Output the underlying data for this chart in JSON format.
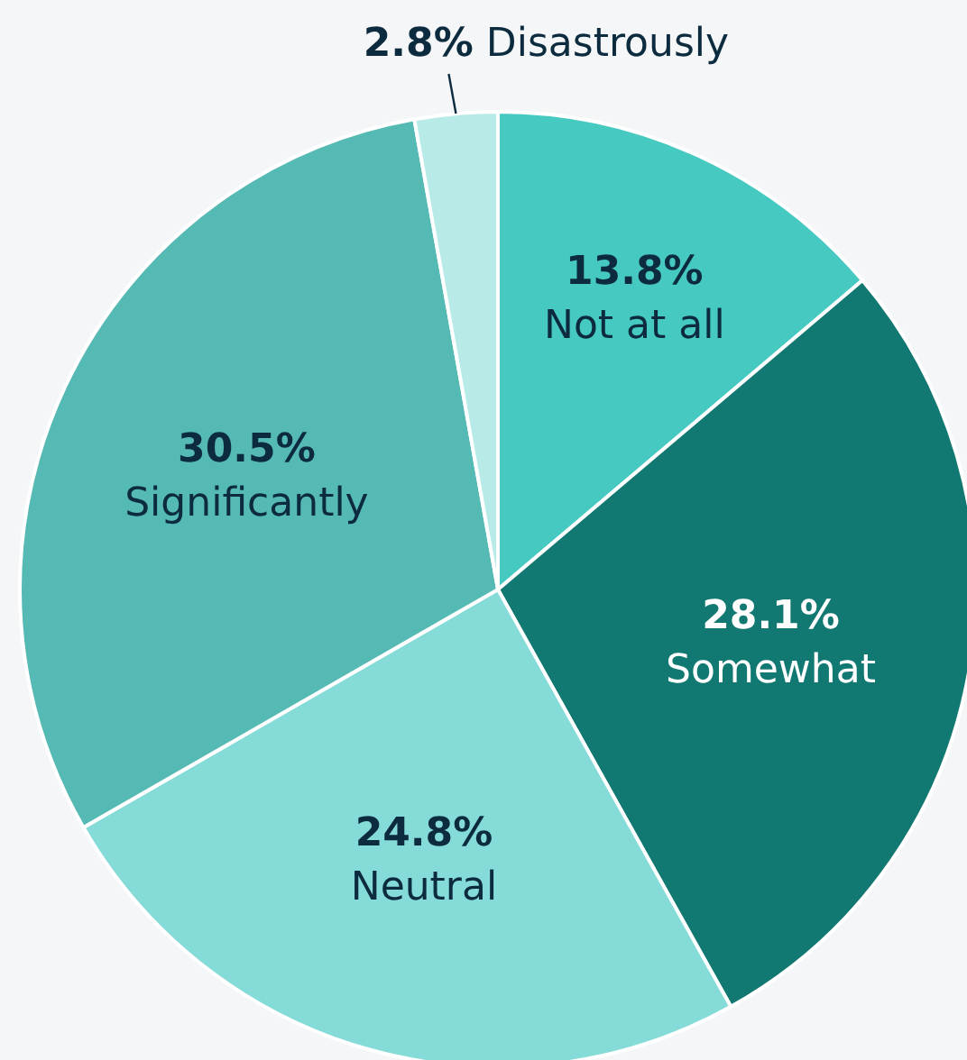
{
  "chart_data": {
    "type": "pie",
    "categories": [
      "Not at all",
      "Somewhat",
      "Neutral",
      "Significantly",
      "Disastrously"
    ],
    "values": [
      13.8,
      28.1,
      24.8,
      30.5,
      2.8
    ],
    "value_labels": [
      "13.8%",
      "28.1%",
      "24.8%",
      "30.5%",
      "2.8%"
    ],
    "colors": [
      "#45c9c1",
      "#127872",
      "#85dbd8",
      "#55b9b4",
      "#b8ebe8"
    ]
  }
}
